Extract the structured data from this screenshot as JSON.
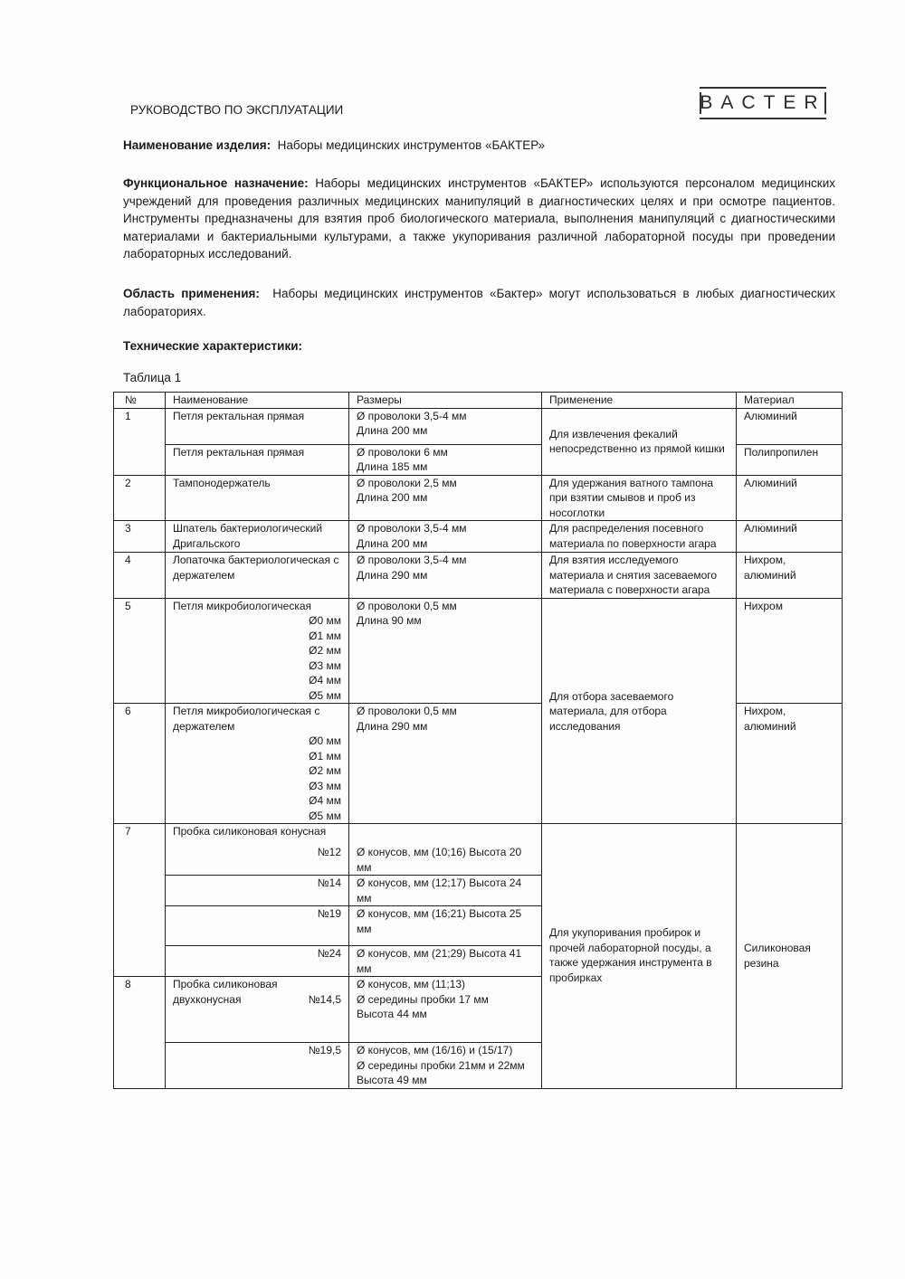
{
  "header": {
    "title": "РУКОВОДСТВО ПО ЭКСПЛУАТАЦИИ",
    "logo": "BACTER"
  },
  "product": {
    "label": "Наименование изделия:",
    "value": "Наборы медицинских инструментов «БАКТЕР»"
  },
  "purpose": {
    "label": "Функциональное назначение:",
    "value": "Наборы медицинских инструментов «БАКТЕР» используются персоналом медицинских учреждений для проведения различных медицинских манипуляций в диагностических целях и при осмотре пациентов. Инструменты предназначены для взятия проб биологического материала, выполнения манипуляций с диагностическими материалами и бактериальными культурами, а также укупоривания различной лабораторной посуды при проведении лабораторных исследований."
  },
  "scope": {
    "label": "Область применения:",
    "value": "Наборы медицинских инструментов «Бактер» могут использоваться в любых диагностических лабораториях."
  },
  "specs_heading": "Технические характеристики:",
  "table_caption": "Таблица 1",
  "table": {
    "headers": [
      "№",
      "Наименование",
      "Размеры",
      "Применение",
      "Материал"
    ],
    "r1": {
      "no": "1",
      "name": "Петля ректальная прямая",
      "size1": "Ø проволоки 3,5-4 мм",
      "size2": "Длина 200 мм",
      "app": "Для извлечения фекалий непосредственно из прямой кишки",
      "mat": "Алюминий"
    },
    "r1b": {
      "name": "Петля ректальная прямая",
      "size1": "Ø проволоки 6 мм",
      "size2": "Длина 185 мм",
      "mat": "Полипропилен"
    },
    "r2": {
      "no": "2",
      "name": "Тампонодержатель",
      "size1": "Ø проволоки 2,5 мм",
      "size2": "Длина 200 мм",
      "app": "Для удержания ватного тампона при взятии смывов и проб из носоглотки",
      "mat": "Алюминий"
    },
    "r3": {
      "no": "3",
      "name": "Шпатель бактериологический Дригальского",
      "size1": "Ø проволоки 3,5-4 мм",
      "size2": "Длина 200 мм",
      "app": "Для распределения посевного материала по поверхности агара",
      "mat": "Алюминий"
    },
    "r4": {
      "no": "4",
      "name": "Лопаточка бактериологическая с держателем",
      "size1": "Ø проволоки 3,5-4 мм",
      "size2": "Длина 290 мм",
      "app": "Для взятия исследуемого материала и снятия засеваемого материала с поверхности агара",
      "mat": "Нихром, алюминий"
    },
    "r5": {
      "no": "5",
      "name": "Петля микробиологическая",
      "variants": [
        "Ø0 мм",
        "Ø1 мм",
        "Ø2 мм",
        "Ø3 мм",
        "Ø4 мм",
        "Ø5 мм"
      ],
      "size1": "Ø проволоки 0,5 мм",
      "size2": "Длина 90 мм",
      "app": "Для отбора засеваемого материала, для отбора исследования",
      "mat": "Нихром"
    },
    "r6": {
      "no": "6",
      "name": "Петля микробиологическая с держателем",
      "variants": [
        "Ø0 мм",
        "Ø1 мм",
        "Ø2 мм",
        "Ø3 мм",
        "Ø4 мм",
        "Ø5 мм"
      ],
      "size1": "Ø проволоки 0,5 мм",
      "size2": "Длина 290 мм",
      "mat": "Нихром, алюминий"
    },
    "r7": {
      "no": "7",
      "name": "Пробка силиконовая конусная",
      "app": "Для укупоривания пробирок и прочей лабораторной посуды, а также удержания инструмента в пробирках",
      "mat": "Силиконовая резина",
      "subs": [
        {
          "num": "№12",
          "size": "Ø конусов, мм (10;16) Высота 20 мм"
        },
        {
          "num": "№14",
          "size": "Ø конусов, мм (12;17) Высота 24 мм"
        },
        {
          "num": "№19",
          "size": "Ø конусов, мм (16;21) Высота 25 мм"
        },
        {
          "num": "№24",
          "size": "Ø конусов, мм (21;29) Высота 41 мм"
        }
      ]
    },
    "r8": {
      "no": "8",
      "name": "Пробка силиконовая двухконусная",
      "subs": [
        {
          "num": "№14,5",
          "size1": "Ø конусов, мм (11;13)",
          "size2": "Ø середины пробки 17 мм",
          "size3": "Высота 44 мм"
        },
        {
          "num": "№19,5",
          "size1": "Ø конусов, мм (16/16) и (15/17)",
          "size2": "Ø середины пробки 21мм и 22мм",
          "size3": "Высота 49 мм"
        }
      ]
    }
  }
}
